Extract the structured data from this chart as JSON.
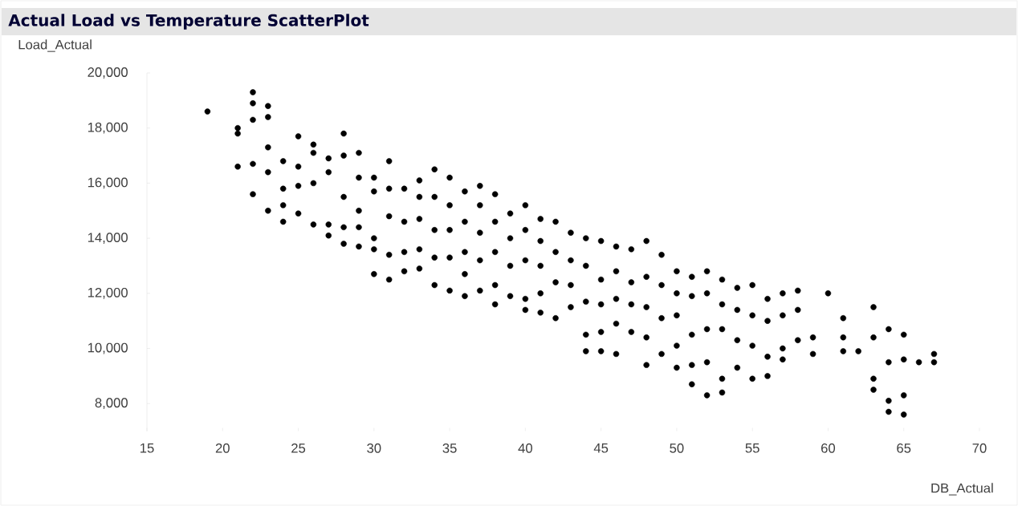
{
  "chart_data": {
    "type": "scatter",
    "title": "Actual Load vs Temperature ScatterPlot",
    "xlabel": "DB_Actual",
    "ylabel": "Load_Actual",
    "xlim": [
      15,
      70
    ],
    "ylim": [
      7000,
      20000
    ],
    "xticks": [
      15,
      20,
      25,
      30,
      35,
      40,
      45,
      50,
      55,
      60,
      65,
      70
    ],
    "yticks": [
      {
        "value": 8000,
        "label": "8,000"
      },
      {
        "value": 10000,
        "label": "10,000"
      },
      {
        "value": 12000,
        "label": "12,000"
      },
      {
        "value": 14000,
        "label": "14,000"
      },
      {
        "value": 16000,
        "label": "16,000"
      },
      {
        "value": 18000,
        "label": "18,000"
      },
      {
        "value": 20000,
        "label": "20,000"
      }
    ],
    "color": "#000000",
    "x": [
      19,
      21,
      21,
      21,
      22,
      22,
      22,
      22,
      22,
      23,
      23,
      23,
      23,
      23,
      24,
      24,
      24,
      24,
      25,
      25,
      25,
      25,
      26,
      26,
      26,
      26,
      27,
      27,
      27,
      27,
      28,
      28,
      28,
      28,
      28,
      29,
      29,
      29,
      29,
      29,
      30,
      30,
      30,
      30,
      30,
      31,
      31,
      31,
      31,
      31,
      32,
      32,
      32,
      32,
      33,
      33,
      33,
      33,
      33,
      34,
      34,
      34,
      34,
      34,
      35,
      35,
      35,
      35,
      35,
      36,
      36,
      36,
      36,
      36,
      37,
      37,
      37,
      37,
      37,
      38,
      38,
      38,
      38,
      38,
      39,
      39,
      39,
      39,
      40,
      40,
      40,
      40,
      40,
      41,
      41,
      41,
      41,
      41,
      42,
      42,
      42,
      42,
      43,
      43,
      43,
      43,
      44,
      44,
      44,
      44,
      44,
      45,
      45,
      45,
      45,
      45,
      46,
      46,
      46,
      46,
      46,
      47,
      47,
      47,
      47,
      48,
      48,
      48,
      48,
      48,
      49,
      49,
      49,
      49,
      50,
      50,
      50,
      50,
      50,
      51,
      51,
      51,
      51,
      51,
      52,
      52,
      52,
      52,
      52,
      53,
      53,
      53,
      53,
      53,
      54,
      54,
      54,
      54,
      55,
      55,
      55,
      55,
      56,
      56,
      56,
      56,
      57,
      57,
      57,
      57,
      58,
      58,
      58,
      59,
      59,
      60,
      61,
      61,
      61,
      62,
      63,
      63,
      63,
      63,
      64,
      64,
      64,
      64,
      65,
      65,
      65,
      65,
      66,
      67,
      67
    ],
    "values": [
      18600,
      18000,
      17800,
      16600,
      19300,
      18900,
      18300,
      16700,
      15600,
      18800,
      18400,
      17300,
      16400,
      15000,
      16800,
      15800,
      15200,
      14600,
      17700,
      16600,
      15900,
      14900,
      17400,
      17100,
      16000,
      14500,
      16900,
      16400,
      14500,
      14100,
      17800,
      17000,
      15500,
      14400,
      13800,
      17100,
      16200,
      15000,
      14400,
      13700,
      16200,
      15700,
      14000,
      13600,
      12700,
      16800,
      15800,
      14800,
      13400,
      12500,
      15800,
      14600,
      13500,
      12800,
      16100,
      15500,
      14700,
      13600,
      12900,
      16500,
      15500,
      14300,
      13300,
      12300,
      16200,
      15200,
      14300,
      13300,
      12100,
      15700,
      14600,
      13500,
      12700,
      11900,
      15900,
      15200,
      14200,
      13200,
      12100,
      15600,
      14600,
      13500,
      12300,
      11600,
      14900,
      14000,
      13000,
      11900,
      15200,
      14300,
      13200,
      11800,
      11400,
      14700,
      13900,
      13000,
      12000,
      11300,
      14600,
      13500,
      12400,
      11100,
      14200,
      13200,
      12300,
      11500,
      14000,
      13000,
      11700,
      10500,
      9900,
      13900,
      12500,
      11600,
      10600,
      9900,
      13700,
      12800,
      11800,
      10900,
      9800,
      13600,
      12400,
      11600,
      10600,
      13900,
      12600,
      11500,
      10400,
      9400,
      13400,
      12300,
      11100,
      9800,
      12800,
      12000,
      11200,
      10100,
      9300,
      12600,
      11900,
      10500,
      9400,
      8700,
      12800,
      12000,
      10700,
      9500,
      8300,
      12500,
      11600,
      10700,
      8900,
      8400,
      12200,
      11400,
      10300,
      9300,
      12300,
      11200,
      10100,
      8900,
      11800,
      11000,
      9700,
      9000,
      12000,
      11200,
      10000,
      9600,
      12100,
      11400,
      10300,
      10400,
      9800,
      12000,
      11100,
      10400,
      9900,
      9900,
      11500,
      10400,
      8900,
      8500,
      10700,
      9500,
      8100,
      7700,
      10500,
      9600,
      8300,
      7600,
      9500,
      9800,
      9500
    ]
  }
}
